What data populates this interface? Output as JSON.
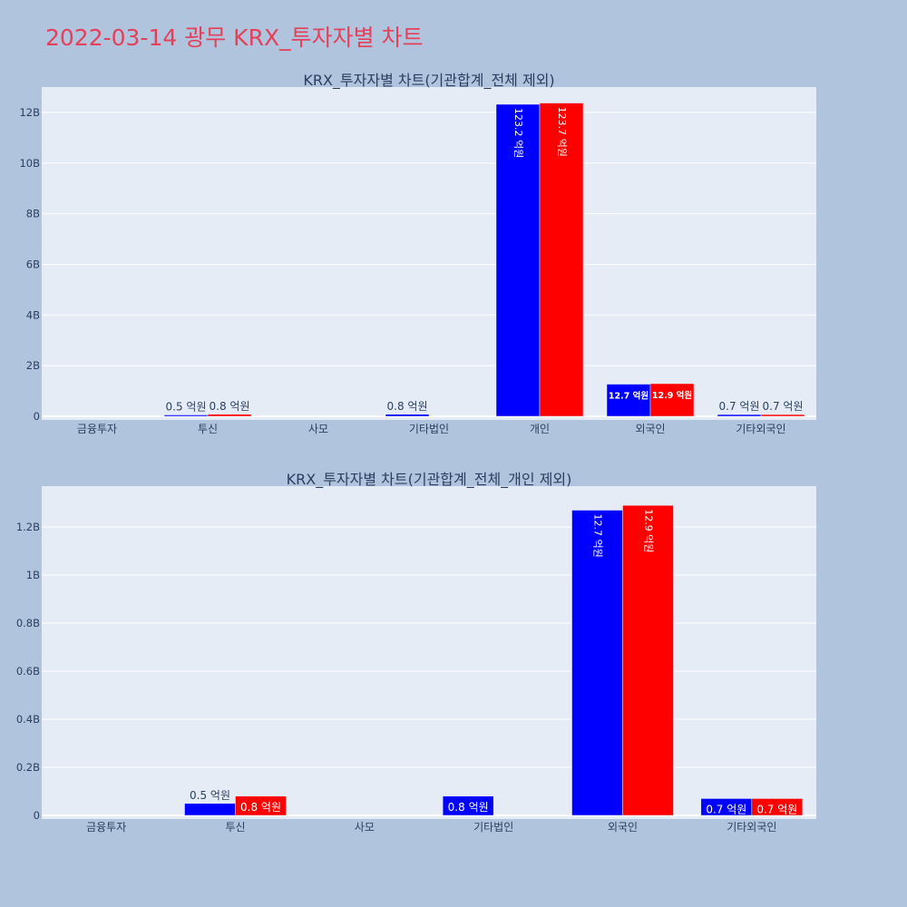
{
  "page_title": "2022-03-14 광무 KRX_투자자별 차트",
  "colors": {
    "series_a": "#0000ff",
    "series_b": "#ff0000",
    "plot_bg": "#e5ecf6",
    "page_bg": "#b0c4de",
    "title": "#e5405a"
  },
  "chart_data": [
    {
      "type": "bar",
      "title": "KRX_투자자별 차트(기관합계_전체 제외)",
      "categories": [
        "금융투자",
        "투신",
        "사모",
        "기타법인",
        "개인",
        "외국인",
        "기타외국인"
      ],
      "ylim": [
        0,
        13000000000
      ],
      "yticks": [
        0,
        2000000000,
        4000000000,
        6000000000,
        8000000000,
        10000000000,
        12000000000
      ],
      "ytick_labels": [
        "0",
        "2B",
        "4B",
        "6B",
        "8B",
        "10B",
        "12B"
      ],
      "grid": true,
      "series": [
        {
          "color": "#0000ff",
          "values": [
            0,
            50000000,
            0,
            80000000,
            12320000000,
            1270000000,
            70000000
          ],
          "labels": [
            "",
            "0.5 억원",
            "",
            "0.8 억원",
            "123.2 억원",
            "12.7 억원",
            "0.7 억원"
          ]
        },
        {
          "color": "#ff0000",
          "values": [
            0,
            80000000,
            0,
            0,
            12370000000,
            1290000000,
            70000000
          ],
          "labels": [
            "",
            "0.8 억원",
            "",
            "",
            "123.7 억원",
            "12.9 억원",
            "0.7 억원"
          ]
        }
      ]
    },
    {
      "type": "bar",
      "title": "KRX_투자자별 차트(기관합계_전체_개인 제외)",
      "categories": [
        "금융투자",
        "투신",
        "사모",
        "기타법인",
        "외국인",
        "기타외국인"
      ],
      "ylim": [
        0,
        1370000000
      ],
      "yticks": [
        0,
        200000000,
        400000000,
        600000000,
        800000000,
        1000000000,
        1200000000
      ],
      "ytick_labels": [
        "0",
        "0.2B",
        "0.4B",
        "0.6B",
        "0.8B",
        "1B",
        "1.2B"
      ],
      "grid": true,
      "series": [
        {
          "color": "#0000ff",
          "values": [
            0,
            50000000,
            0,
            80000000,
            1270000000,
            70000000
          ],
          "labels": [
            "",
            "0.5 억원",
            "",
            "0.8 억원",
            "12.7 억원",
            "0.7 억원"
          ]
        },
        {
          "color": "#ff0000",
          "values": [
            0,
            80000000,
            0,
            0,
            1290000000,
            70000000
          ],
          "labels": [
            "",
            "0.8 억원",
            "",
            "",
            "12.9 억원",
            "0.7 억원"
          ]
        }
      ]
    }
  ]
}
